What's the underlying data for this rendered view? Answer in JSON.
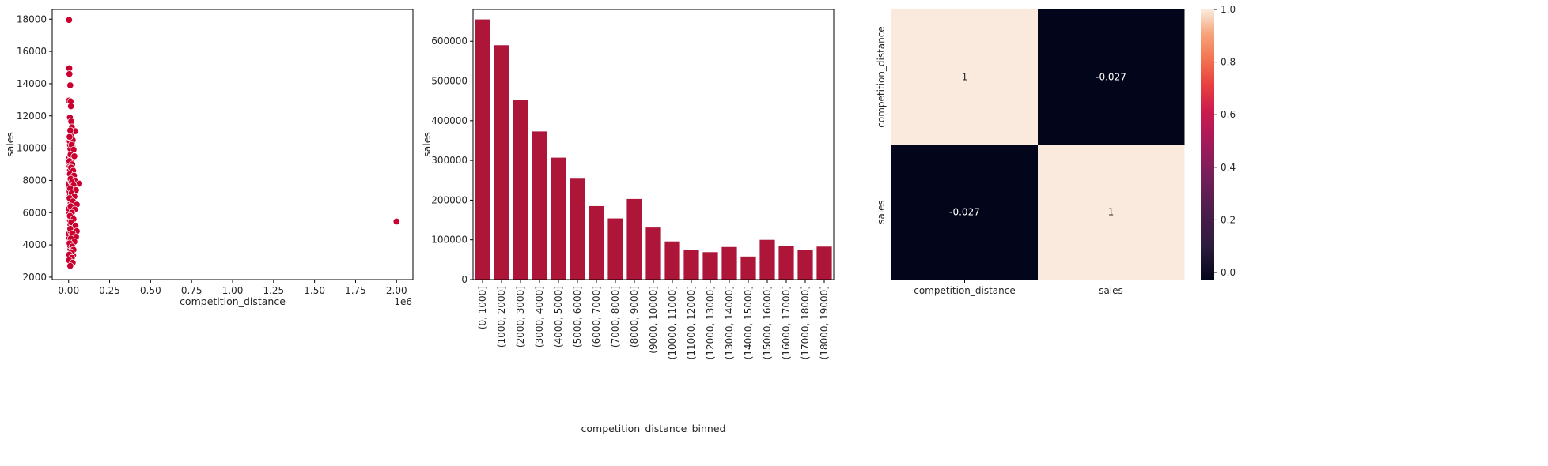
{
  "chart_data": [
    {
      "type": "scatter",
      "xlabel": "competition_distance",
      "ylabel": "sales",
      "x_offset_label": "1e6",
      "xlim": [
        -0.1,
        2.1
      ],
      "ylim": [
        1850,
        18600
      ],
      "x_ticks": [
        0.0,
        0.25,
        0.5,
        0.75,
        1.0,
        1.25,
        1.5,
        1.75,
        2.0
      ],
      "x_tick_labels": [
        "0.00",
        "0.25",
        "0.50",
        "0.75",
        "1.00",
        "1.25",
        "1.50",
        "1.75",
        "2.00"
      ],
      "y_ticks": [
        2000,
        4000,
        6000,
        8000,
        10000,
        12000,
        14000,
        16000,
        18000
      ],
      "y_tick_labels": [
        "2000",
        "4000",
        "6000",
        "8000",
        "10000",
        "12000",
        "14000",
        "16000",
        "18000"
      ],
      "points": [
        {
          "x": 0.003,
          "y": 17950
        },
        {
          "x": 0.004,
          "y": 14950
        },
        {
          "x": 0.005,
          "y": 14600
        },
        {
          "x": 0.01,
          "y": 13900
        },
        {
          "x": 0.002,
          "y": 12950
        },
        {
          "x": 0.012,
          "y": 12900
        },
        {
          "x": 0.014,
          "y": 12600
        },
        {
          "x": 0.008,
          "y": 11900
        },
        {
          "x": 0.016,
          "y": 11650
        },
        {
          "x": 0.02,
          "y": 11300
        },
        {
          "x": 0.04,
          "y": 11050
        },
        {
          "x": 0.01,
          "y": 11100
        },
        {
          "x": 0.025,
          "y": 10500
        },
        {
          "x": 0.006,
          "y": 10700
        },
        {
          "x": 0.018,
          "y": 10200
        },
        {
          "x": 0.03,
          "y": 9900
        },
        {
          "x": 0.012,
          "y": 9600
        },
        {
          "x": 0.035,
          "y": 9500
        },
        {
          "x": 0.005,
          "y": 9200
        },
        {
          "x": 0.022,
          "y": 9000
        },
        {
          "x": 0.015,
          "y": 8800
        },
        {
          "x": 0.028,
          "y": 8600
        },
        {
          "x": 0.008,
          "y": 8400
        },
        {
          "x": 0.033,
          "y": 8300
        },
        {
          "x": 0.012,
          "y": 8100
        },
        {
          "x": 0.04,
          "y": 8000
        },
        {
          "x": 0.02,
          "y": 7900
        },
        {
          "x": 0.065,
          "y": 7800
        },
        {
          "x": 0.03,
          "y": 7700
        },
        {
          "x": 0.01,
          "y": 7500
        },
        {
          "x": 0.045,
          "y": 7400
        },
        {
          "x": 0.018,
          "y": 7200
        },
        {
          "x": 0.035,
          "y": 7000
        },
        {
          "x": 0.006,
          "y": 6900
        },
        {
          "x": 0.026,
          "y": 6700
        },
        {
          "x": 0.05,
          "y": 6500
        },
        {
          "x": 0.012,
          "y": 6400
        },
        {
          "x": 0.038,
          "y": 6200
        },
        {
          "x": 0.02,
          "y": 6000
        },
        {
          "x": 0.008,
          "y": 5800
        },
        {
          "x": 0.03,
          "y": 5600
        },
        {
          "x": 0.016,
          "y": 5400
        },
        {
          "x": 0.042,
          "y": 5200
        },
        {
          "x": 0.01,
          "y": 5000
        },
        {
          "x": 0.05,
          "y": 4850
        },
        {
          "x": 0.025,
          "y": 4700
        },
        {
          "x": 0.045,
          "y": 4500
        },
        {
          "x": 0.014,
          "y": 4400
        },
        {
          "x": 0.035,
          "y": 4200
        },
        {
          "x": 0.006,
          "y": 4100
        },
        {
          "x": 0.022,
          "y": 3900
        },
        {
          "x": 0.03,
          "y": 3700
        },
        {
          "x": 0.015,
          "y": 3550
        },
        {
          "x": 0.004,
          "y": 3400
        },
        {
          "x": 0.02,
          "y": 3200
        },
        {
          "x": 0.003,
          "y": 3050
        },
        {
          "x": 0.025,
          "y": 2900
        },
        {
          "x": 0.01,
          "y": 2700
        },
        {
          "x": 2.0,
          "y": 5450
        }
      ]
    },
    {
      "type": "bar",
      "xlabel": "competition_distance_binned",
      "ylabel": "sales",
      "ylim": [
        0,
        680000
      ],
      "y_ticks": [
        0,
        100000,
        200000,
        300000,
        400000,
        500000,
        600000
      ],
      "y_tick_labels": [
        "0",
        "100000",
        "200000",
        "300000",
        "400000",
        "500000",
        "600000"
      ],
      "categories": [
        "(0, 1000]",
        "(1000, 2000]",
        "(2000, 3000]",
        "(3000, 4000]",
        "(4000, 5000]",
        "(5000, 6000]",
        "(6000, 7000]",
        "(7000, 8000]",
        "(8000, 9000]",
        "(9000, 10000]",
        "(10000, 11000]",
        "(11000, 12000]",
        "(12000, 13000]",
        "(13000, 14000]",
        "(14000, 15000]",
        "(15000, 16000]",
        "(16000, 17000]",
        "(17000, 18000]",
        "(18000, 19000]"
      ],
      "values": [
        655000,
        590000,
        452000,
        373000,
        307000,
        256000,
        185000,
        154000,
        203000,
        131000,
        96000,
        75000,
        69000,
        82000,
        58000,
        100000,
        85000,
        75000,
        83000
      ]
    },
    {
      "type": "heatmap",
      "row_labels": [
        "competition_distance",
        "sales"
      ],
      "col_labels": [
        "competition_distance",
        "sales"
      ],
      "values": [
        [
          1,
          -0.027
        ],
        [
          -0.027,
          1
        ]
      ],
      "annotations": [
        [
          "1",
          "-0.027"
        ],
        [
          "-0.027",
          "1"
        ]
      ],
      "colormap": "rocket",
      "colorbar_range": [
        -0.027,
        1.0
      ],
      "colorbar_ticks": [
        0.0,
        0.2,
        0.4,
        0.6,
        0.8,
        1.0
      ],
      "colorbar_tick_labels": [
        "0.0",
        "0.2",
        "0.4",
        "0.6",
        "0.8",
        "1.0"
      ]
    }
  ],
  "colors": {
    "marker": "#c9002f",
    "bar": "#ae1639",
    "heat_high": "#faeade",
    "heat_low": "#03051a"
  }
}
